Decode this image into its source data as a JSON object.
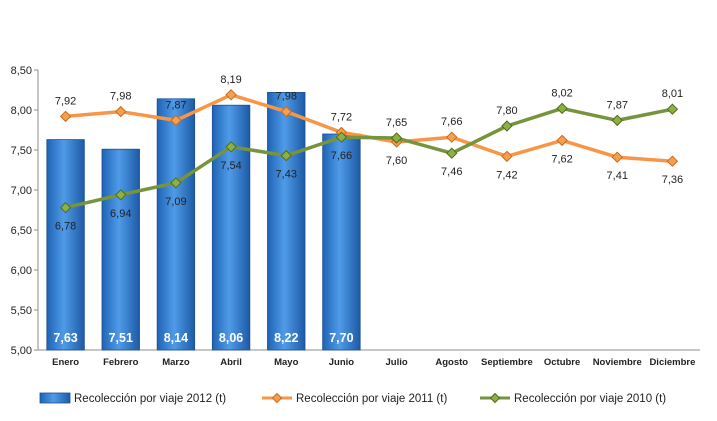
{
  "chart_data": {
    "type": "bar",
    "categories": [
      "Enero",
      "Febrero",
      "Marzo",
      "Abril",
      "Mayo",
      "Junio",
      "Julio",
      "Agosto",
      "Septiembre",
      "Octubre",
      "Noviembre",
      "Diciembre"
    ],
    "series": [
      {
        "name": "Recolección por viaje 2012 (t)",
        "type": "bar",
        "color": "#2f7fd6",
        "values": [
          7.63,
          7.51,
          8.14,
          8.06,
          8.22,
          7.7,
          null,
          null,
          null,
          null,
          null,
          null
        ],
        "labels": [
          "7,63",
          "7,51",
          "8,14",
          "8,06",
          "8,22",
          "7,70",
          "",
          "",
          "",
          "",
          "",
          ""
        ]
      },
      {
        "name": "Recolección por viaje 2011 (t)",
        "type": "line",
        "color": "#f79646",
        "values": [
          7.92,
          7.98,
          7.87,
          8.19,
          7.98,
          7.72,
          7.6,
          7.66,
          7.42,
          7.62,
          7.41,
          7.36
        ],
        "labels": [
          "7,92",
          "7,98",
          "7,87",
          "8,19",
          "7,98",
          "7,72",
          "7,60",
          "7,66",
          "7,42",
          "7,62",
          "7,41",
          "7,36"
        ]
      },
      {
        "name": "Recolección por viaje 2010 (t)",
        "type": "line",
        "color": "#77933c",
        "values": [
          6.78,
          6.94,
          7.09,
          7.54,
          7.43,
          7.66,
          7.65,
          7.46,
          7.8,
          8.02,
          7.87,
          8.01
        ],
        "labels": [
          "6,78",
          "6,94",
          "7,09",
          "7,54",
          "7,43",
          "7,66",
          "7,65",
          "7,46",
          "7,80",
          "8,02",
          "7,87",
          "8,01"
        ]
      }
    ],
    "y_ticks": [
      "5,00",
      "5,50",
      "6,00",
      "6,50",
      "7,00",
      "7,50",
      "8,00",
      "8,50"
    ],
    "ylim": [
      5.0,
      8.5
    ],
    "title": "",
    "xlabel": "",
    "ylabel": "",
    "grid": false,
    "legend_position": "bottom"
  }
}
